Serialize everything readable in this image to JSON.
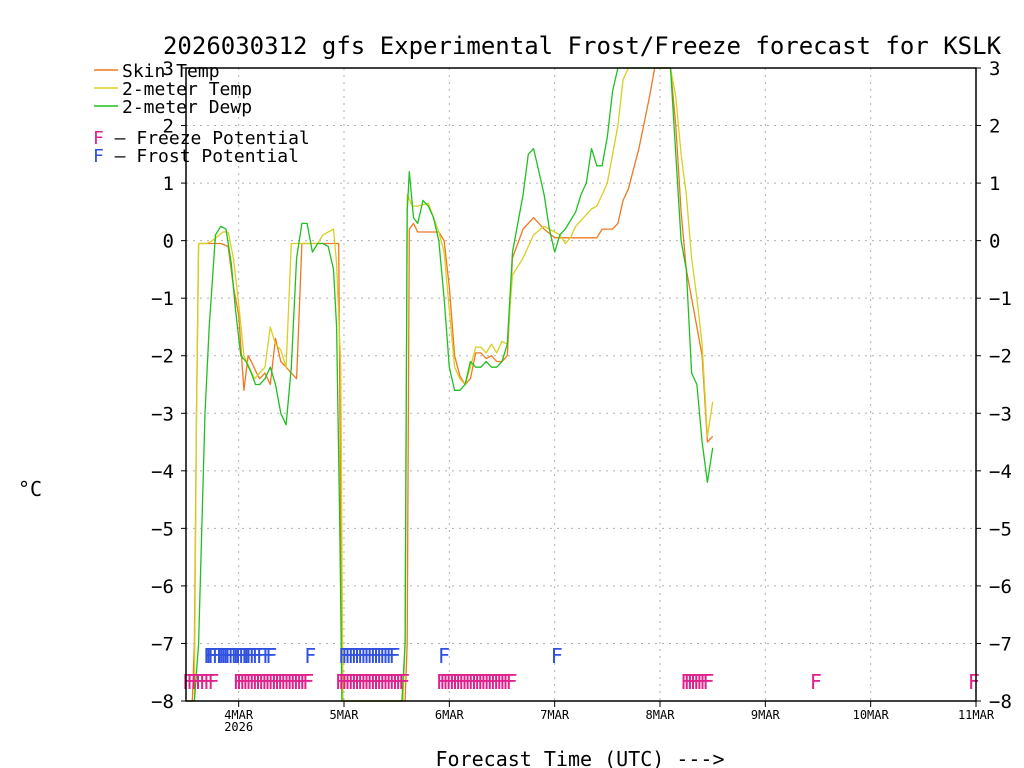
{
  "chart_data": {
    "type": "line",
    "title": "2026030312 gfs Experimental Frost/Freeze forecast for KSLK",
    "xlabel": "Forecast Time (UTC) --->",
    "ylabel": "°C",
    "ylim": [
      -8,
      3
    ],
    "xlim": [
      3.5,
      11.0
    ],
    "yticks": [
      -8,
      -7,
      -6,
      -5,
      -4,
      -3,
      -2,
      -1,
      0,
      1,
      2,
      3
    ],
    "yticks_labels": [
      "−8",
      "−7",
      "−6",
      "−5",
      "−4",
      "−3",
      "−2",
      "−1",
      "0",
      "1",
      "2",
      "3"
    ],
    "xticks": [
      {
        "x": 4,
        "label": "4MAR",
        "sub": "2026"
      },
      {
        "x": 5,
        "label": "5MAR",
        "sub": ""
      },
      {
        "x": 6,
        "label": "6MAR",
        "sub": ""
      },
      {
        "x": 7,
        "label": "7MAR",
        "sub": ""
      },
      {
        "x": 8,
        "label": "8MAR",
        "sub": ""
      },
      {
        "x": 9,
        "label": "9MAR",
        "sub": ""
      },
      {
        "x": 10,
        "label": "10MAR",
        "sub": ""
      },
      {
        "x": 11,
        "label": "11MAR",
        "sub": ""
      }
    ],
    "grid": true,
    "series": [
      {
        "name": "Skin Temp",
        "color": "#f07820",
        "x": [
          3.5,
          3.56,
          3.58,
          3.6,
          3.62,
          3.72,
          3.83,
          3.9,
          3.95,
          4.0,
          4.05,
          4.09,
          4.12,
          4.17,
          4.2,
          4.25,
          4.3,
          4.35,
          4.4,
          4.45,
          4.5,
          4.55,
          4.6,
          4.7,
          4.8,
          4.85,
          4.9,
          4.95,
          4.97,
          4.99,
          5.01,
          5.58,
          5.6,
          5.62,
          5.66,
          5.7,
          5.8,
          5.9,
          5.95,
          6.0,
          6.05,
          6.1,
          6.15,
          6.2,
          6.25,
          6.3,
          6.35,
          6.4,
          6.45,
          6.5,
          6.55,
          6.6,
          6.7,
          6.8,
          6.9,
          7.0,
          7.05,
          7.1,
          7.15,
          7.2,
          7.3,
          7.4,
          7.45,
          7.5,
          7.55,
          7.6,
          7.65,
          7.7,
          7.8,
          7.9,
          7.95,
          8.0,
          8.05,
          8.1,
          8.15,
          8.2,
          8.25,
          8.3,
          8.35,
          8.4,
          8.45,
          8.5
        ],
        "y": [
          -8,
          -8,
          -7,
          -3,
          -0.05,
          -0.05,
          -0.05,
          -0.1,
          -0.8,
          -1.3,
          -2.6,
          -2.0,
          -2.1,
          -2.3,
          -2.4,
          -2.3,
          -2.5,
          -1.7,
          -2.1,
          -2.2,
          -2.3,
          -2.4,
          -0.05,
          -0.05,
          -0.05,
          -0.05,
          -0.05,
          -0.05,
          -5,
          -8,
          -8,
          -8,
          -7,
          0.2,
          0.3,
          0.15,
          0.15,
          0.15,
          0.0,
          -0.8,
          -2.0,
          -2.35,
          -2.5,
          -2.4,
          -1.95,
          -1.95,
          -2.05,
          -2.0,
          -2.1,
          -2.1,
          -2.0,
          -0.3,
          0.2,
          0.4,
          0.2,
          0.05,
          0.05,
          0.05,
          0.05,
          0.05,
          0.05,
          0.05,
          0.2,
          0.2,
          0.2,
          0.3,
          0.7,
          0.9,
          1.6,
          2.5,
          3.2,
          3.2,
          3.2,
          3.2,
          2.0,
          0.5,
          -0.5,
          -1.0,
          -1.5,
          -2.0,
          -3.5,
          -3.4
        ]
      },
      {
        "name": "2-meter Temp",
        "color": "#d8d020",
        "x": [
          3.5,
          3.58,
          3.6,
          3.62,
          3.7,
          3.75,
          3.85,
          3.9,
          3.95,
          4.0,
          4.05,
          4.1,
          4.15,
          4.2,
          4.25,
          4.3,
          4.35,
          4.4,
          4.45,
          4.5,
          4.55,
          4.6,
          4.7,
          4.75,
          4.8,
          4.85,
          4.9,
          4.93,
          4.97,
          4.99,
          5.01,
          5.56,
          5.58,
          5.6,
          5.65,
          5.7,
          5.8,
          5.9,
          5.95,
          6.0,
          6.05,
          6.1,
          6.15,
          6.2,
          6.25,
          6.3,
          6.35,
          6.4,
          6.45,
          6.5,
          6.55,
          6.6,
          6.7,
          6.8,
          6.9,
          7.0,
          7.05,
          7.1,
          7.15,
          7.2,
          7.25,
          7.3,
          7.35,
          7.4,
          7.45,
          7.5,
          7.55,
          7.6,
          7.65,
          7.7,
          7.8,
          7.9,
          7.95,
          8.0,
          8.05,
          8.1,
          8.15,
          8.2,
          8.25,
          8.3,
          8.35,
          8.4,
          8.45,
          8.5
        ],
        "y": [
          -8,
          -8,
          -3,
          -0.05,
          -0.05,
          0.0,
          0.15,
          0.15,
          -0.3,
          -1.1,
          -2.0,
          -2.2,
          -2.4,
          -2.3,
          -2.2,
          -1.5,
          -1.8,
          -1.9,
          -2.2,
          -0.05,
          -0.05,
          -0.05,
          -0.05,
          -0.05,
          0.1,
          0.15,
          0.2,
          -0.4,
          -2.2,
          -8,
          -8,
          -8,
          -7,
          0.8,
          0.6,
          0.6,
          0.65,
          0.15,
          -0.2,
          -1.2,
          -2.2,
          -2.4,
          -2.5,
          -2.2,
          -1.85,
          -1.85,
          -1.95,
          -1.8,
          -1.95,
          -1.75,
          -1.8,
          -0.6,
          -0.3,
          0.1,
          0.25,
          0.15,
          0.1,
          -0.05,
          0.05,
          0.25,
          0.35,
          0.45,
          0.55,
          0.6,
          0.8,
          1.0,
          1.5,
          2.0,
          2.8,
          3.2,
          3.2,
          3.2,
          3.2,
          3.2,
          3.2,
          3.2,
          2.5,
          1.5,
          0.8,
          -0.3,
          -1.0,
          -1.8,
          -3.4,
          -2.8
        ]
      },
      {
        "name": "2-meter Dewp",
        "color": "#20c020",
        "x": [
          3.5,
          3.58,
          3.62,
          3.68,
          3.72,
          3.78,
          3.83,
          3.88,
          3.93,
          3.97,
          4.02,
          4.07,
          4.12,
          4.16,
          4.2,
          4.25,
          4.3,
          4.35,
          4.4,
          4.45,
          4.5,
          4.55,
          4.6,
          4.65,
          4.7,
          4.75,
          4.8,
          4.85,
          4.9,
          4.93,
          4.96,
          4.98,
          5.0,
          5.02,
          5.55,
          5.58,
          5.6,
          5.62,
          5.66,
          5.7,
          5.75,
          5.8,
          5.85,
          5.9,
          5.95,
          6.0,
          6.05,
          6.1,
          6.15,
          6.2,
          6.25,
          6.3,
          6.35,
          6.4,
          6.45,
          6.5,
          6.55,
          6.6,
          6.65,
          6.7,
          6.75,
          6.8,
          6.85,
          6.9,
          6.95,
          7.0,
          7.05,
          7.1,
          7.15,
          7.2,
          7.25,
          7.3,
          7.35,
          7.4,
          7.45,
          7.5,
          7.55,
          7.6,
          7.65,
          7.7,
          7.8,
          7.9,
          7.95,
          8.0,
          8.05,
          8.1,
          8.15,
          8.2,
          8.25,
          8.3,
          8.35,
          8.4,
          8.45,
          8.5
        ],
        "y": [
          -8,
          -8,
          -7,
          -3,
          -1.5,
          0.1,
          0.25,
          0.2,
          -0.4,
          -1.2,
          -2.0,
          -2.1,
          -2.3,
          -2.5,
          -2.5,
          -2.4,
          -2.2,
          -2.5,
          -3.0,
          -3.2,
          -2.2,
          -0.3,
          0.3,
          0.3,
          -0.2,
          -0.05,
          -0.05,
          -0.1,
          -0.5,
          -1.5,
          -5,
          -8,
          -8,
          -8,
          -8,
          -7,
          0.5,
          1.2,
          0.4,
          0.3,
          0.7,
          0.6,
          0.4,
          0.0,
          -1.0,
          -2.2,
          -2.6,
          -2.6,
          -2.5,
          -2.1,
          -2.2,
          -2.2,
          -2.1,
          -2.2,
          -2.2,
          -2.1,
          -1.8,
          -0.2,
          0.3,
          0.8,
          1.5,
          1.6,
          1.2,
          0.8,
          0.2,
          -0.2,
          0.1,
          0.2,
          0.35,
          0.5,
          0.8,
          1.0,
          1.6,
          1.3,
          1.3,
          1.8,
          2.6,
          3.2,
          3.2,
          3.2,
          3.2,
          3.2,
          3.2,
          3.2,
          3.2,
          3.2,
          1.5,
          0.0,
          -0.5,
          -2.3,
          -2.5,
          -3.5,
          -4.2,
          -3.6
        ]
      }
    ],
    "legend": {
      "placement": "top-left",
      "entries": [
        {
          "label": "Skin Temp",
          "color": "#f07820"
        },
        {
          "label": "2-meter Temp",
          "color": "#d8d020"
        },
        {
          "label": "2-meter Dewp",
          "color": "#20c020"
        }
      ],
      "potentials": [
        {
          "letter": "F",
          "label": " – Freeze Potential",
          "color": "#e0208c"
        },
        {
          "letter": "F",
          "label": " – Frost Potential",
          "color": "#3050e0"
        }
      ]
    },
    "frost_markers": {
      "color": "#3050e0",
      "y": -7.2,
      "x": [
        3.72,
        3.74,
        3.76,
        3.8,
        3.84,
        3.86,
        3.88,
        3.9,
        3.92,
        3.95,
        3.98,
        4.0,
        4.02,
        4.05,
        4.08,
        4.1,
        4.12,
        4.15,
        4.18,
        4.22,
        4.28,
        4.31,
        4.68,
        5.0,
        5.03,
        5.06,
        5.09,
        5.12,
        5.15,
        5.18,
        5.21,
        5.24,
        5.27,
        5.3,
        5.33,
        5.36,
        5.39,
        5.42,
        5.45,
        5.48,
        5.95,
        7.02
      ]
    },
    "freeze_markers": {
      "color": "#e0208c",
      "y": -7.65,
      "x": [
        3.52,
        3.56,
        3.6,
        3.64,
        3.68,
        3.72,
        3.76,
        4.0,
        4.03,
        4.06,
        4.09,
        4.12,
        4.15,
        4.18,
        4.21,
        4.24,
        4.27,
        4.3,
        4.33,
        4.36,
        4.39,
        4.42,
        4.45,
        4.48,
        4.51,
        4.54,
        4.57,
        4.6,
        4.63,
        4.66,
        4.97,
        5.0,
        5.03,
        5.06,
        5.09,
        5.12,
        5.15,
        5.18,
        5.21,
        5.24,
        5.27,
        5.3,
        5.33,
        5.36,
        5.39,
        5.42,
        5.45,
        5.48,
        5.51,
        5.54,
        5.57,
        5.93,
        5.96,
        5.99,
        6.02,
        6.05,
        6.08,
        6.11,
        6.14,
        6.17,
        6.2,
        6.23,
        6.26,
        6.29,
        6.32,
        6.35,
        6.38,
        6.41,
        6.44,
        6.47,
        6.5,
        6.53,
        6.56,
        6.59,
        8.25,
        8.28,
        8.31,
        8.34,
        8.37,
        8.4,
        8.43,
        8.46,
        9.48,
        10.98
      ]
    }
  }
}
